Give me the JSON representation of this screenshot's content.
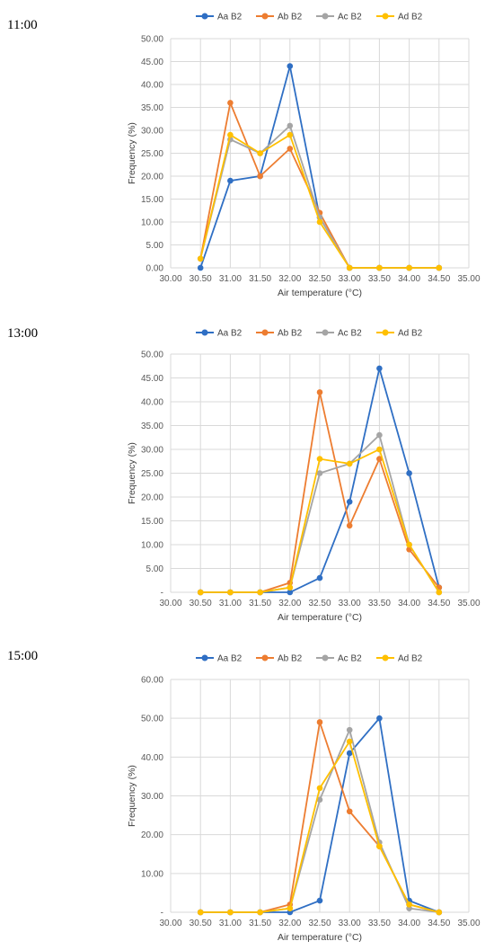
{
  "colors": {
    "Aa B2": "#2f6fc4",
    "Ab B2": "#ed7d31",
    "Ac B2": "#a5a5a5",
    "Ad B2": "#ffc000"
  },
  "chart_data": [
    {
      "type": "line",
      "time_label": "11:00",
      "xlabel": "Air temperature (°C)",
      "ylabel": "Frequency (%)",
      "xlim": [
        30.0,
        35.0
      ],
      "ylim": [
        0,
        50
      ],
      "x_ticks": [
        "30.00",
        "30.50",
        "31.00",
        "31.50",
        "32.00",
        "32.50",
        "33.00",
        "33.50",
        "34.00",
        "34.50",
        "35.00"
      ],
      "y_ticks": [
        "0.00",
        "5.00",
        "10.00",
        "15.00",
        "20.00",
        "25.00",
        "30.00",
        "35.00",
        "40.00",
        "45.00",
        "50.00"
      ],
      "y_tick_values": [
        0,
        5,
        10,
        15,
        20,
        25,
        30,
        35,
        40,
        45,
        50
      ],
      "legend_placement": "top",
      "x": [
        30.5,
        31.0,
        31.5,
        32.0,
        32.5,
        33.0,
        33.5,
        34.0,
        34.5
      ],
      "series": [
        {
          "name": "Aa B2",
          "values": [
            0,
            19,
            20,
            44,
            11,
            0,
            0,
            0,
            0
          ]
        },
        {
          "name": "Ab B2",
          "values": [
            2,
            36,
            20,
            26,
            12,
            0,
            0,
            0,
            0
          ]
        },
        {
          "name": "Ac B2",
          "values": [
            2,
            28,
            25,
            31,
            11,
            0,
            0,
            0,
            0
          ]
        },
        {
          "name": "Ad B2",
          "values": [
            2,
            29,
            25,
            29,
            10,
            0,
            0,
            0,
            0
          ]
        }
      ]
    },
    {
      "type": "line",
      "time_label": "13:00",
      "xlabel": "Air temperature (°C)",
      "ylabel": "Frequency (%)",
      "xlim": [
        30.0,
        35.0
      ],
      "ylim": [
        0,
        50
      ],
      "x_ticks": [
        "30.00",
        "30.50",
        "31.00",
        "31.50",
        "32.00",
        "32.50",
        "33.00",
        "33.50",
        "34.00",
        "34.50",
        "35.00"
      ],
      "y_ticks": [
        "-",
        "5.00",
        "10.00",
        "15.00",
        "20.00",
        "25.00",
        "30.00",
        "35.00",
        "40.00",
        "45.00",
        "50.00"
      ],
      "y_tick_values": [
        0,
        5,
        10,
        15,
        20,
        25,
        30,
        35,
        40,
        45,
        50
      ],
      "legend_placement": "top",
      "x": [
        30.5,
        31.0,
        31.5,
        32.0,
        32.5,
        33.0,
        33.5,
        34.0,
        34.5
      ],
      "series": [
        {
          "name": "Aa B2",
          "values": [
            0,
            0,
            0,
            0,
            3,
            19,
            47,
            25,
            1
          ]
        },
        {
          "name": "Ab B2",
          "values": [
            0,
            0,
            0,
            2,
            42,
            14,
            28,
            9,
            1
          ]
        },
        {
          "name": "Ac B2",
          "values": [
            0,
            0,
            0,
            1,
            25,
            27,
            33,
            10,
            0
          ]
        },
        {
          "name": "Ad B2",
          "values": [
            0,
            0,
            0,
            1,
            28,
            27,
            30,
            10,
            0
          ]
        }
      ]
    },
    {
      "type": "line",
      "time_label": "15:00",
      "xlabel": "Air temperature (°C)",
      "ylabel": "Frequency (%)",
      "xlim": [
        30.0,
        35.0
      ],
      "ylim": [
        0,
        60
      ],
      "x_ticks": [
        "30.00",
        "30.50",
        "31.00",
        "31.50",
        "32.00",
        "32.50",
        "33.00",
        "33.50",
        "34.00",
        "34.50",
        "35.00"
      ],
      "y_ticks": [
        "-",
        "10.00",
        "20.00",
        "30.00",
        "40.00",
        "50.00",
        "60.00"
      ],
      "y_tick_values": [
        0,
        10,
        20,
        30,
        40,
        50,
        60
      ],
      "legend_placement": "top",
      "x": [
        30.5,
        31.0,
        31.5,
        32.0,
        32.5,
        33.0,
        33.5,
        34.0,
        34.5
      ],
      "series": [
        {
          "name": "Aa B2",
          "values": [
            0,
            0,
            0,
            0,
            3,
            41,
            50,
            3,
            0
          ]
        },
        {
          "name": "Ab B2",
          "values": [
            0,
            0,
            0,
            2,
            49,
            26,
            17,
            2,
            0
          ]
        },
        {
          "name": "Ac B2",
          "values": [
            0,
            0,
            0,
            1,
            29,
            47,
            18,
            1,
            0
          ]
        },
        {
          "name": "Ad B2",
          "values": [
            0,
            0,
            0,
            1,
            32,
            44,
            17,
            2,
            0
          ]
        }
      ]
    }
  ]
}
